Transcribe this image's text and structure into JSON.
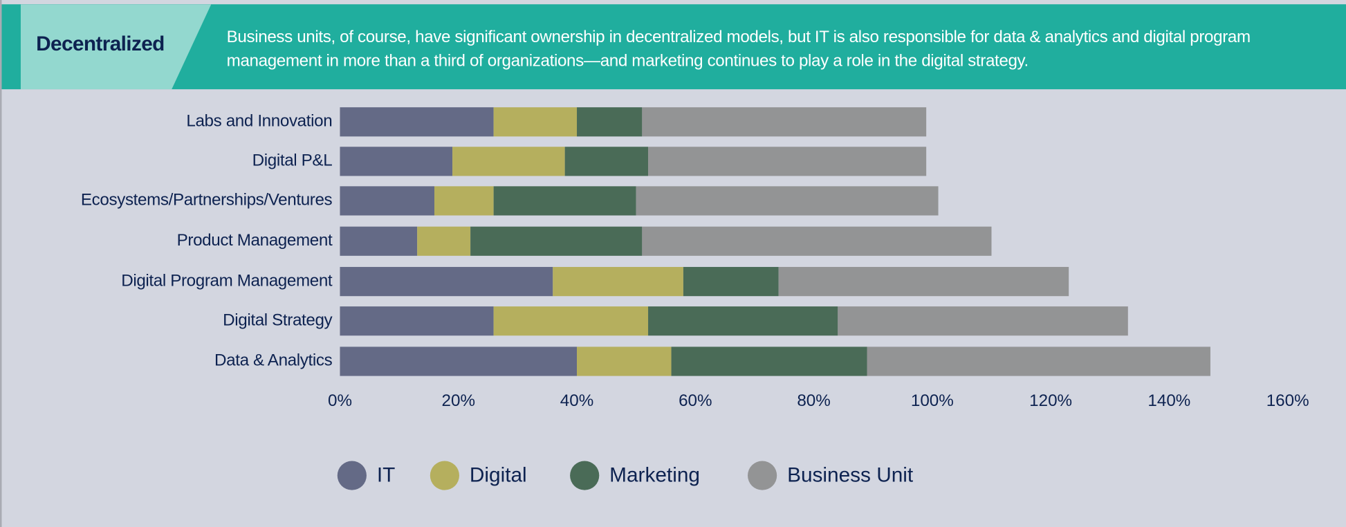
{
  "header": {
    "tag": "Decentralized",
    "description": "Business units, of course, have significant ownership in decentralized models, but  IT is also responsible for data & analytics and digital program management in more than a third of organizations—and marketing continues to play a role in the digital strategy."
  },
  "chart_data": {
    "type": "bar",
    "orientation": "horizontal",
    "stacked": true,
    "categories": [
      "Labs and  Innovation",
      "Digital P&L",
      "Ecosystems/Partnerships/Ventures",
      "Product Management",
      "Digital Program Management",
      "Digital Strategy",
      "Data & Analytics"
    ],
    "series": [
      {
        "name": "IT",
        "color": "#646a86",
        "values": [
          26,
          19,
          16,
          13,
          36,
          26,
          40
        ]
      },
      {
        "name": "Digital",
        "color": "#b5af5e",
        "values": [
          14,
          19,
          10,
          9,
          22,
          26,
          16
        ]
      },
      {
        "name": "Marketing",
        "color": "#4a6b57",
        "values": [
          11,
          14,
          24,
          29,
          16,
          32,
          33
        ]
      },
      {
        "name": "Business Unit",
        "color": "#939495",
        "values": [
          48,
          47,
          51,
          59,
          49,
          49,
          58
        ]
      }
    ],
    "xlim": [
      0,
      160
    ],
    "xticks": [
      "0%",
      "20%",
      "40%",
      "60%",
      "80%",
      "100%",
      "120%",
      "140%",
      "160%"
    ],
    "grid": false,
    "legend": "bottom"
  }
}
